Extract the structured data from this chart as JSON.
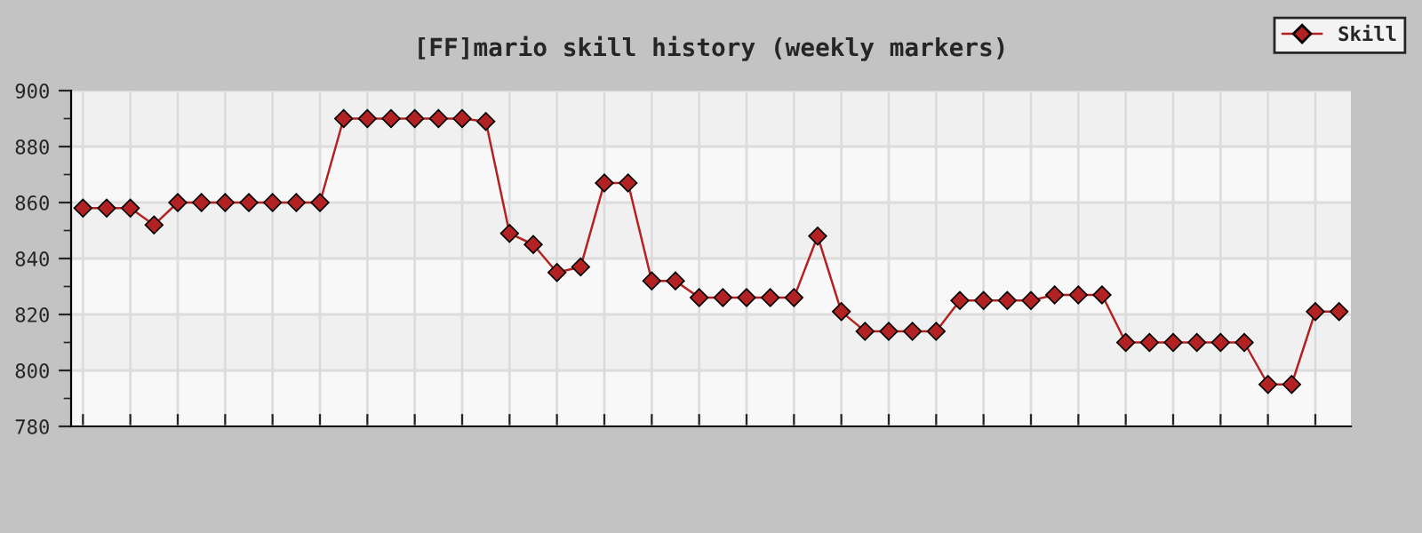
{
  "chart_data": {
    "type": "line",
    "title": "[FF]mario skill history (weekly markers)",
    "categories": [
      null,
      null,
      null,
      null,
      null,
      null,
      null,
      null,
      null,
      null,
      null,
      null,
      null,
      null,
      null,
      null,
      null,
      null,
      null,
      null,
      null,
      null,
      null,
      null,
      null,
      null,
      null,
      null,
      null,
      null,
      null,
      null,
      null,
      null,
      null,
      null,
      null,
      null,
      null,
      null,
      null,
      null,
      null,
      null,
      null,
      null,
      null,
      null,
      null,
      null,
      null,
      null,
      null,
      null
    ],
    "series": [
      {
        "name": "Skill",
        "color": "#b22222",
        "values": [
          858,
          858,
          858,
          852,
          860,
          860,
          860,
          860,
          860,
          860,
          860,
          890,
          890,
          890,
          890,
          890,
          890,
          889,
          849,
          845,
          835,
          837,
          867,
          867,
          832,
          832,
          826,
          826,
          826,
          826,
          826,
          848,
          821,
          814,
          814,
          814,
          814,
          825,
          825,
          825,
          825,
          827,
          827,
          827,
          810,
          810,
          810,
          810,
          810,
          810,
          795,
          795,
          821,
          821
        ]
      }
    ],
    "ylim": [
      780,
      900
    ],
    "yticks": [
      780,
      800,
      820,
      840,
      860,
      880,
      900
    ],
    "grid": true,
    "legend": "top right",
    "marker": "diamond",
    "line_style": "solid"
  }
}
